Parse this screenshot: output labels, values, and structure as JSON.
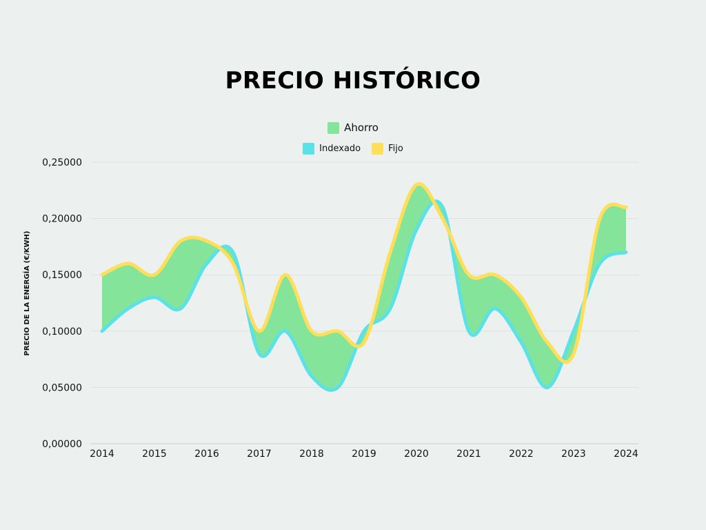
{
  "chart_data": {
    "type": "area",
    "title": "PRECIO HISTÓRICO",
    "xlabel": "",
    "ylabel": "PRECIO DE LA ENERGÍA (€/KWH)",
    "x": [
      2014,
      2014.5,
      2015,
      2015.5,
      2016,
      2016.5,
      2017,
      2017.5,
      2018,
      2018.5,
      2019,
      2019.5,
      2020,
      2020.5,
      2021,
      2021.5,
      2022,
      2022.5,
      2023,
      2023.5,
      2024
    ],
    "xticks": [
      "2014",
      "2015",
      "2016",
      "2017",
      "2018",
      "2019",
      "2020",
      "2021",
      "2022",
      "2023",
      "2024"
    ],
    "xlim": [
      2014,
      2024
    ],
    "ylim": [
      0,
      0.25
    ],
    "yticks": [
      "0,00000",
      "0,05000",
      "0,10000",
      "0,15000",
      "0,20000",
      "0,25000"
    ],
    "grid": true,
    "legend_position": "top-center",
    "series": [
      {
        "name": "Indexado",
        "color": "#5CE1E6",
        "values": [
          0.1,
          0.12,
          0.13,
          0.12,
          0.16,
          0.17,
          0.08,
          0.1,
          0.06,
          0.05,
          0.1,
          0.12,
          0.19,
          0.21,
          0.1,
          0.12,
          0.09,
          0.05,
          0.1,
          0.16,
          0.17
        ]
      },
      {
        "name": "Fijo",
        "color": "#FFDE59",
        "values": [
          0.15,
          0.16,
          0.15,
          0.18,
          0.18,
          0.16,
          0.1,
          0.15,
          0.1,
          0.1,
          0.09,
          0.17,
          0.23,
          0.2,
          0.15,
          0.15,
          0.13,
          0.09,
          0.08,
          0.2,
          0.21
        ]
      }
    ],
    "fill": {
      "name": "Ahorro",
      "color": "#84E59A",
      "between": [
        "Indexado",
        "Fijo"
      ]
    }
  }
}
